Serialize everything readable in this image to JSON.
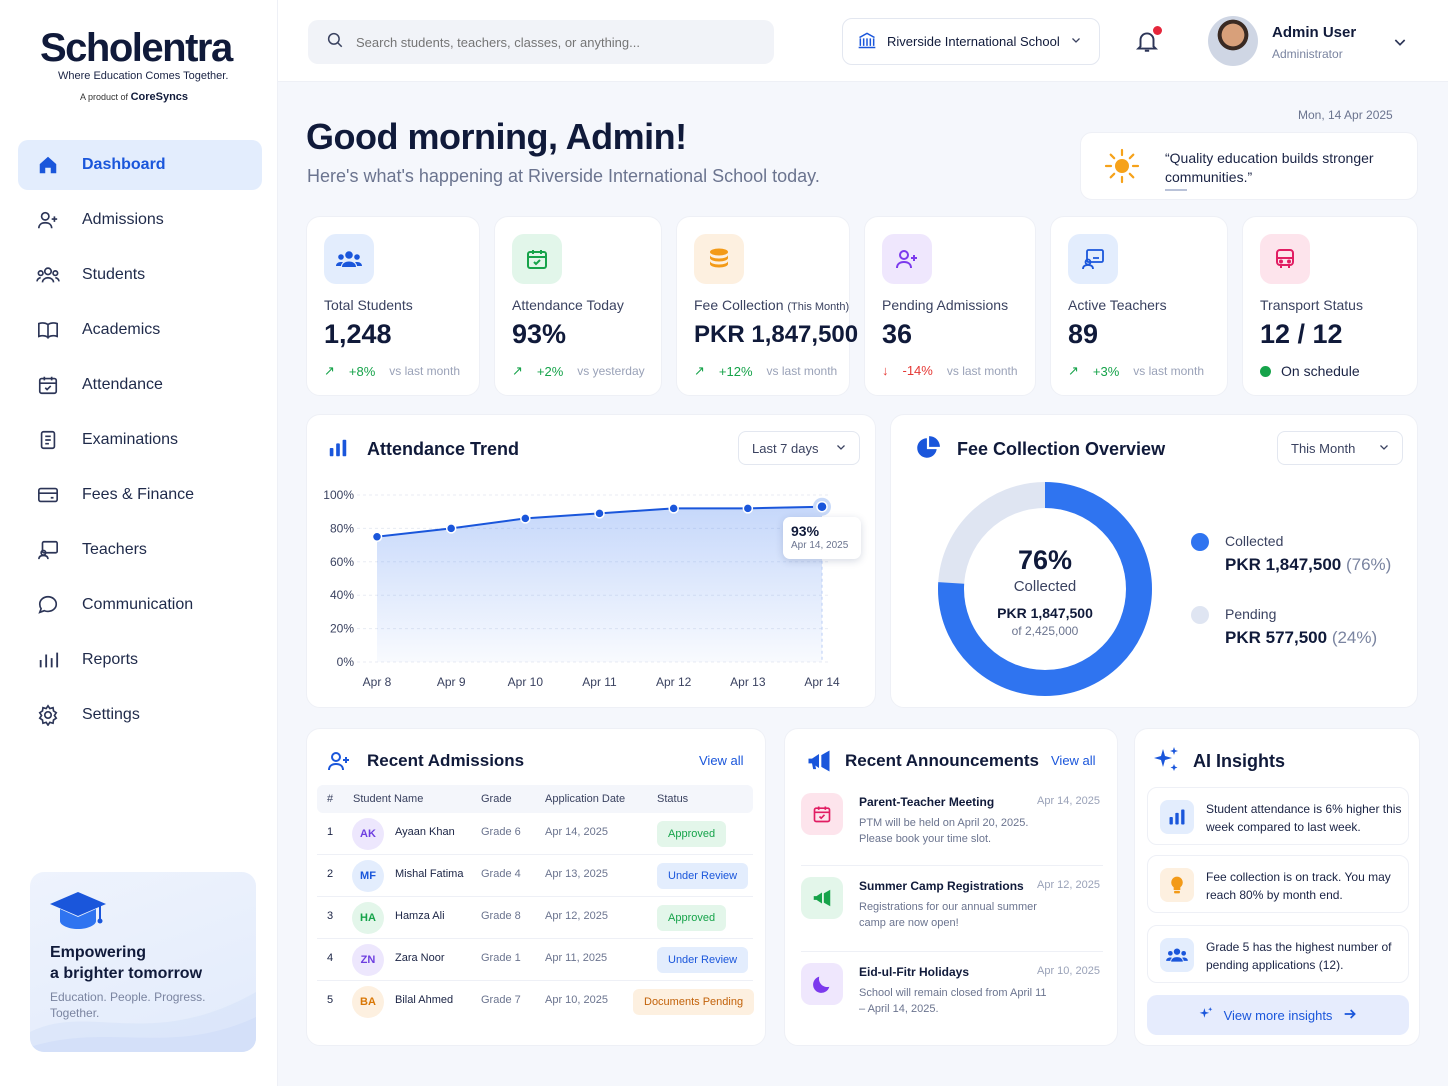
{
  "brand": {
    "name": "Scholentra",
    "tagline": "Where Education Comes Together.",
    "product_prefix": "A product of",
    "product_name": "CoreSyncs"
  },
  "sidebar": {
    "items": [
      {
        "label": "Dashboard",
        "icon": "home-icon",
        "active": true
      },
      {
        "label": "Admissions",
        "icon": "user-plus-icon"
      },
      {
        "label": "Students",
        "icon": "users-icon"
      },
      {
        "label": "Academics",
        "icon": "book-icon"
      },
      {
        "label": "Attendance",
        "icon": "calendar-check-icon"
      },
      {
        "label": "Examinations",
        "icon": "clipboard-icon"
      },
      {
        "label": "Fees & Finance",
        "icon": "card-icon"
      },
      {
        "label": "Teachers",
        "icon": "teacher-board-icon"
      },
      {
        "label": "Communication",
        "icon": "chat-icon"
      },
      {
        "label": "Reports",
        "icon": "bar-chart-icon"
      },
      {
        "label": "Settings",
        "icon": "gear-icon"
      }
    ],
    "promo": {
      "title_line1": "Empowering",
      "title_line2": "a brighter tomorrow",
      "subtitle": "Education. People. Progress. Together."
    }
  },
  "topbar": {
    "search_placeholder": "Search students, teachers, classes, or anything...",
    "school": "Riverside International School",
    "user_name": "Admin User",
    "user_role": "Administrator"
  },
  "header": {
    "date": "Mon, 14 Apr 2025",
    "greeting": "Good morning, Admin!",
    "subtitle": "Here's what's happening at Riverside International School today.",
    "quote": "“Quality education builds stronger communities.”"
  },
  "stats": [
    {
      "label": "Total Students",
      "value": "1,248",
      "trend": "+8%",
      "compare": "vs last month",
      "direction": "up"
    },
    {
      "label": "Attendance Today",
      "value": "93%",
      "trend": "+2%",
      "compare": "vs yesterday",
      "direction": "up"
    },
    {
      "label": "Fee Collection",
      "label_note": "(This Month)",
      "value": "PKR 1,847,500",
      "trend": "+12%",
      "compare": "vs last month",
      "direction": "up"
    },
    {
      "label": "Pending Admissions",
      "value": "36",
      "trend": "-14%",
      "compare": "vs last month",
      "direction": "down"
    },
    {
      "label": "Active Teachers",
      "value": "89",
      "trend": "+3%",
      "compare": "vs last month",
      "direction": "up"
    },
    {
      "label": "Transport Status",
      "value": "12 / 12",
      "status": "On schedule"
    }
  ],
  "attendance": {
    "title": "Attendance Trend",
    "range": "Last 7 days",
    "tooltip_value": "93%",
    "tooltip_date": "Apr 14, 2025"
  },
  "chart_data": {
    "type": "area",
    "categories": [
      "Apr 8",
      "Apr 9",
      "Apr 10",
      "Apr 11",
      "Apr 12",
      "Apr 13",
      "Apr 14"
    ],
    "values": [
      75,
      80,
      86,
      89,
      92,
      92,
      93
    ],
    "y_ticks": [
      "0%",
      "20%",
      "40%",
      "60%",
      "80%",
      "100%"
    ],
    "ylim": [
      0,
      100
    ],
    "color": "#1a56db"
  },
  "fees": {
    "title": "Fee Collection Overview",
    "range": "This Month",
    "percent": "76%",
    "percent_label": "Collected",
    "amount": "PKR 1,847,500",
    "total": "of 2,425,000",
    "collected_fraction": 0.76,
    "legend": [
      {
        "label": "Collected",
        "value": "PKR 1,847,500",
        "pct": "(76%)",
        "color": "#2f74f0"
      },
      {
        "label": "Pending",
        "value": "PKR 577,500",
        "pct": "(24%)",
        "color": "#dfe5f2"
      }
    ]
  },
  "admissions": {
    "title": "Recent Admissions",
    "view_all": "View all",
    "columns": [
      "#",
      "Student Name",
      "Grade",
      "Application Date",
      "Status"
    ],
    "rows": [
      {
        "n": "1",
        "initials": "AK",
        "name": "Ayaan Khan",
        "grade": "Grade 6",
        "date": "Apr 14, 2025",
        "status": "Approved"
      },
      {
        "n": "2",
        "initials": "MF",
        "name": "Mishal Fatima",
        "grade": "Grade 4",
        "date": "Apr 13, 2025",
        "status": "Under Review"
      },
      {
        "n": "3",
        "initials": "HA",
        "name": "Hamza Ali",
        "grade": "Grade 8",
        "date": "Apr 12, 2025",
        "status": "Approved"
      },
      {
        "n": "4",
        "initials": "ZN",
        "name": "Zara Noor",
        "grade": "Grade 1",
        "date": "Apr 11, 2025",
        "status": "Under Review"
      },
      {
        "n": "5",
        "initials": "BA",
        "name": "Bilal Ahmed",
        "grade": "Grade 7",
        "date": "Apr 10, 2025",
        "status": "Documents Pending"
      }
    ]
  },
  "announcements": {
    "title": "Recent Announcements",
    "view_all": "View all",
    "items": [
      {
        "title": "Parent-Teacher Meeting",
        "date": "Apr 14, 2025",
        "text": "PTM will be held on April 20, 2025. Please book your time slot."
      },
      {
        "title": "Summer Camp Registrations",
        "date": "Apr 12, 2025",
        "text": "Registrations for our annual summer camp are now open!"
      },
      {
        "title": "Eid-ul-Fitr Holidays",
        "date": "Apr 10, 2025",
        "text": "School will remain closed from April 11 – April 14, 2025."
      }
    ]
  },
  "insights": {
    "title": "AI Insights",
    "items": [
      {
        "text": "Student attendance is 6% higher this week compared to last week."
      },
      {
        "text": "Fee collection is on track. You may reach 80% by month end."
      },
      {
        "text": "Grade 5 has the highest number of pending applications (12)."
      }
    ],
    "more": "View more insights"
  }
}
